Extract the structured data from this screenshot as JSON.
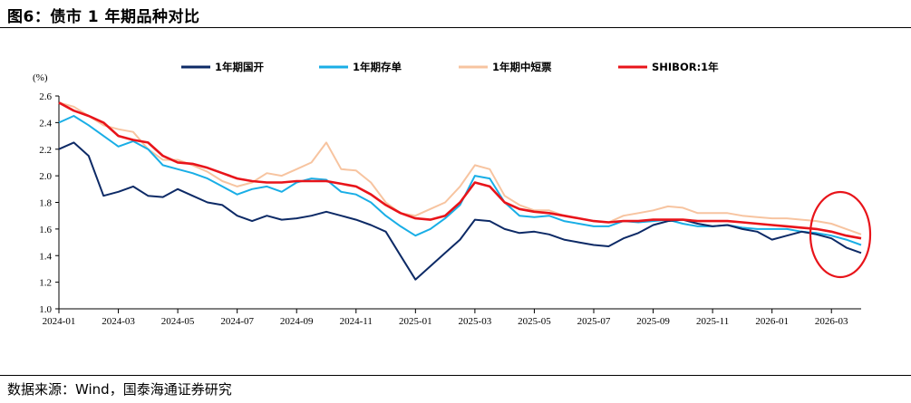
{
  "title": "图6：债市 1 年期品种对比",
  "source_note": "数据来源：Wind，国泰海通证券研究",
  "colors": {
    "kaikai": "#0d2a66",
    "cunchan": "#19aee6",
    "duanrong": "#f7c4a0",
    "shibor": "#e8141a",
    "highlight": "#e8141a"
  },
  "chart_data": {
    "type": "line",
    "y_unit_label": "(%)",
    "ylim": [
      1.0,
      2.6
    ],
    "yticks": [
      "1.0",
      "1.2",
      "1.4",
      "1.6",
      "1.8",
      "2.0",
      "2.2",
      "2.4",
      "2.6"
    ],
    "xticks": [
      "2024-01",
      "2024-03",
      "2024-05",
      "2024-07",
      "2024-09",
      "2024-11",
      "2025-01",
      "2025-03",
      "2025-05",
      "2025-07",
      "2025-09",
      "2025-11",
      "2026-01",
      "2026-03"
    ],
    "grid": false,
    "legend_position": "top",
    "x": [
      "2024-01",
      "2024-01-15",
      "2024-02",
      "2024-02-15",
      "2024-03",
      "2024-03-15",
      "2024-04",
      "2024-04-15",
      "2024-05",
      "2024-05-15",
      "2024-06",
      "2024-06-15",
      "2024-07",
      "2024-07-15",
      "2024-08",
      "2024-08-15",
      "2024-09",
      "2024-09-15",
      "2024-10",
      "2024-10-15",
      "2024-11",
      "2024-11-15",
      "2024-12",
      "2024-12-15",
      "2025-01",
      "2025-01-15",
      "2025-02",
      "2025-02-15",
      "2025-03",
      "2025-03-15",
      "2025-04",
      "2025-04-15",
      "2025-05",
      "2025-05-15",
      "2025-06",
      "2025-06-15",
      "2025-07",
      "2025-07-15",
      "2025-08",
      "2025-08-15",
      "2025-09",
      "2025-09-15",
      "2025-10",
      "2025-10-15",
      "2025-11",
      "2025-11-15",
      "2025-12",
      "2025-12-15",
      "2026-01",
      "2026-01-15",
      "2026-02",
      "2026-02-15",
      "2026-03",
      "2026-03-15",
      "2026-04"
    ],
    "series": [
      {
        "name": "1年期国开",
        "color_key": "kaikai",
        "values": [
          2.2,
          2.25,
          2.15,
          1.85,
          1.88,
          1.92,
          1.85,
          1.84,
          1.9,
          1.85,
          1.8,
          1.78,
          1.7,
          1.66,
          1.7,
          1.67,
          1.68,
          1.7,
          1.73,
          1.7,
          1.67,
          1.63,
          1.58,
          1.4,
          1.22,
          1.32,
          1.42,
          1.52,
          1.67,
          1.66,
          1.6,
          1.57,
          1.58,
          1.56,
          1.52,
          1.5,
          1.48,
          1.47,
          1.53,
          1.57,
          1.63,
          1.66,
          1.67,
          1.64,
          1.62,
          1.63,
          1.6,
          1.58,
          1.52,
          1.55,
          1.58,
          1.56,
          1.53,
          1.46,
          1.42
        ]
      },
      {
        "name": "1年期存单",
        "color_key": "cunchan",
        "values": [
          2.4,
          2.45,
          2.38,
          2.3,
          2.22,
          2.26,
          2.2,
          2.08,
          2.05,
          2.02,
          1.98,
          1.92,
          1.86,
          1.9,
          1.92,
          1.88,
          1.95,
          1.98,
          1.97,
          1.88,
          1.86,
          1.8,
          1.7,
          1.62,
          1.55,
          1.6,
          1.68,
          1.78,
          2.0,
          1.98,
          1.8,
          1.7,
          1.69,
          1.7,
          1.66,
          1.64,
          1.62,
          1.62,
          1.66,
          1.65,
          1.66,
          1.67,
          1.64,
          1.62,
          1.62,
          1.63,
          1.61,
          1.6,
          1.6,
          1.6,
          1.58,
          1.57,
          1.55,
          1.52,
          1.48
        ]
      },
      {
        "name": "1年期中短票",
        "color_key": "duanrong",
        "values": [
          2.55,
          2.52,
          2.45,
          2.38,
          2.35,
          2.33,
          2.2,
          2.12,
          2.12,
          2.08,
          2.03,
          1.96,
          1.92,
          1.95,
          2.02,
          2.0,
          2.05,
          2.1,
          2.25,
          2.05,
          2.04,
          1.95,
          1.8,
          1.72,
          1.7,
          1.75,
          1.8,
          1.92,
          2.08,
          2.05,
          1.85,
          1.78,
          1.74,
          1.74,
          1.7,
          1.68,
          1.66,
          1.65,
          1.7,
          1.72,
          1.74,
          1.77,
          1.76,
          1.72,
          1.72,
          1.72,
          1.7,
          1.69,
          1.68,
          1.68,
          1.67,
          1.66,
          1.64,
          1.6,
          1.56
        ]
      },
      {
        "name": "SHIBOR:1年",
        "color_key": "shibor",
        "values": [
          2.55,
          2.49,
          2.45,
          2.4,
          2.3,
          2.27,
          2.25,
          2.15,
          2.1,
          2.09,
          2.06,
          2.02,
          1.98,
          1.96,
          1.95,
          1.95,
          1.96,
          1.96,
          1.96,
          1.94,
          1.92,
          1.86,
          1.78,
          1.72,
          1.68,
          1.67,
          1.7,
          1.8,
          1.95,
          1.92,
          1.8,
          1.75,
          1.73,
          1.72,
          1.7,
          1.68,
          1.66,
          1.65,
          1.66,
          1.66,
          1.67,
          1.67,
          1.67,
          1.66,
          1.66,
          1.66,
          1.65,
          1.64,
          1.63,
          1.62,
          1.61,
          1.6,
          1.58,
          1.55,
          1.53
        ]
      }
    ]
  }
}
